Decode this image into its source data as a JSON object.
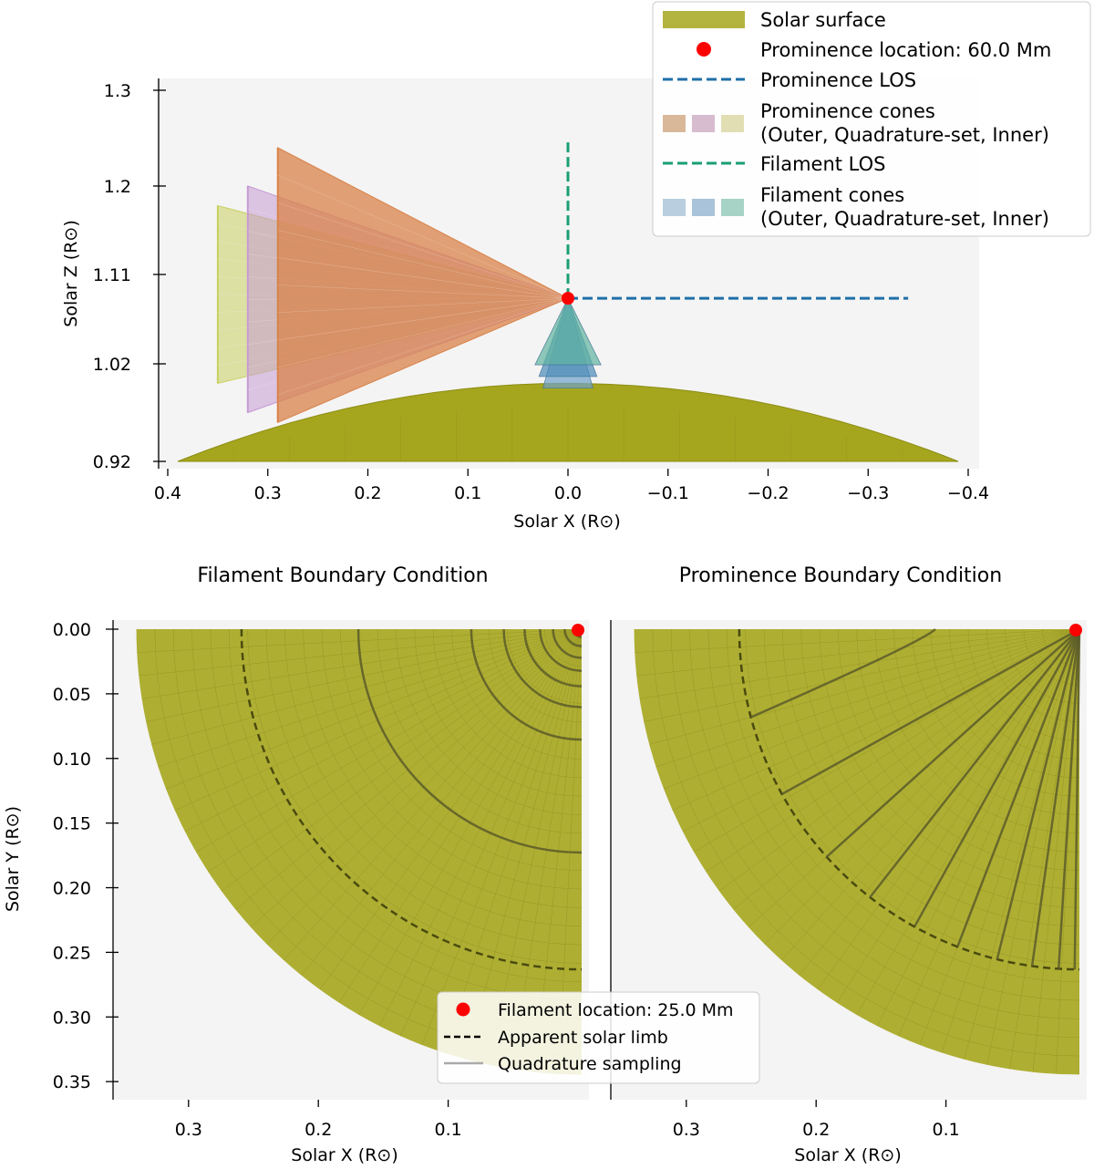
{
  "chart_data": [
    {
      "type": "scatter",
      "name": "side-view-3d",
      "xlabel": "Solar X (R⊙)",
      "ylabel": "Solar Z (R⊙)",
      "xlim": [
        0.4,
        -0.4
      ],
      "ylim": [
        0.92,
        1.3
      ],
      "xticks": [
        "0.4",
        "0.3",
        "0.2",
        "0.1",
        "0.0",
        "−0.1",
        "−0.2",
        "−0.3",
        "−0.4"
      ],
      "xtick_values": [
        0.4,
        0.3,
        0.2,
        0.1,
        0.0,
        -0.1,
        -0.2,
        -0.3,
        -0.4
      ],
      "yticks": [
        "0.92",
        "1.02",
        "1.11",
        "1.2",
        "1.3"
      ],
      "ytick_values": [
        0.92,
        1.02,
        1.11,
        1.2,
        1.3
      ],
      "prominence_point": {
        "x": 0.0,
        "z": 1.086
      },
      "prominence_los": {
        "x": [
          0.0,
          -0.34
        ],
        "z": [
          1.086,
          1.086
        ]
      },
      "filament_los": {
        "x": [
          0.0,
          0.0
        ],
        "z": [
          1.086,
          1.25
        ]
      },
      "solar_surface": {
        "x_range": [
          0.39,
          -0.39
        ],
        "z_apex": 1.0,
        "z_base": 0.92
      },
      "prominence_cones": [
        {
          "set": "Outer",
          "base_x": 0.35,
          "z_range": [
            1.0,
            1.18
          ],
          "color": "#c8d060"
        },
        {
          "set": "Quadrature-set",
          "base_x": 0.32,
          "z_range": [
            0.97,
            1.2
          ],
          "color": "#c79ad4"
        },
        {
          "set": "Inner",
          "base_x": 0.29,
          "z_range": [
            0.96,
            1.24
          ],
          "color": "#d9834a"
        }
      ],
      "filament_cones": {
        "apex": [
          0.0,
          1.086
        ],
        "base_z": [
          1.0,
          1.04
        ],
        "half_width": [
          0.025,
          0.035
        ]
      },
      "legend": {
        "entries": [
          {
            "label": "Solar surface"
          },
          {
            "label": "Prominence location: 60.0 Mm"
          },
          {
            "label": "Prominence LOS"
          },
          {
            "label": "Prominence cones",
            "sublabel": "(Outer, Quadrature-set, Inner)"
          },
          {
            "label": "Filament LOS"
          },
          {
            "label": "Filament cones",
            "sublabel": "(Outer, Quadrature-set, Inner)"
          }
        ],
        "placement": "top-right"
      }
    },
    {
      "type": "scatter",
      "name": "filament-boundary",
      "title": "Filament Boundary Condition",
      "xlabel": "Solar X (R⊙)",
      "ylabel": "Solar Y (R⊙)",
      "xlim": [
        0.36,
        -0.01
      ],
      "ylim": [
        0.35,
        -0.005
      ],
      "xticks": [
        "0.3",
        "0.2",
        "0.1"
      ],
      "xtick_values": [
        0.3,
        0.2,
        0.1
      ],
      "yticks": [
        "0.00",
        "0.05",
        "0.10",
        "0.15",
        "0.20",
        "0.25",
        "0.30",
        "0.35"
      ],
      "ytick_values": [
        0.0,
        0.05,
        0.1,
        0.15,
        0.2,
        0.25,
        0.3,
        0.35
      ],
      "disk_radius": 0.343,
      "apparent_limb_radius": 0.262,
      "quadrature_radii": [
        0.172,
        0.085,
        0.06,
        0.044,
        0.032,
        0.022,
        0.013,
        0.006
      ],
      "point": {
        "x": 0.0,
        "y": 0.0
      }
    },
    {
      "type": "scatter",
      "name": "prominence-boundary",
      "title": "Prominence Boundary Condition",
      "xlabel": "Solar X (R⊙)",
      "xlim": [
        0.36,
        -0.01
      ],
      "ylim": [
        0.35,
        -0.005
      ],
      "xticks": [
        "0.3",
        "0.2",
        "0.1"
      ],
      "xtick_values": [
        0.3,
        0.2,
        0.1
      ],
      "disk_radius": 0.343,
      "apparent_limb_radius": 0.262,
      "quadrature_angles_deg": [
        15,
        29,
        42,
        52,
        61,
        69,
        76,
        82,
        86.5,
        89.2
      ],
      "point": {
        "x": 0.0,
        "y": 0.0
      }
    }
  ],
  "bottom_legend": {
    "entries": [
      {
        "label": "Filament location: 25.0 Mm"
      },
      {
        "label": "Apparent solar limb"
      },
      {
        "label": "Quadrature sampling"
      }
    ]
  },
  "colors": {
    "surface": "#a6a61e",
    "surface_edge": "#8c8c14",
    "point": "#ff0000",
    "prominence_los": "#1f6fa8",
    "filament_los": "#1a9e76",
    "panel_bg": "#f4f4f4",
    "limb": "#4a4a10",
    "quadrature": "#5c5c2a"
  }
}
